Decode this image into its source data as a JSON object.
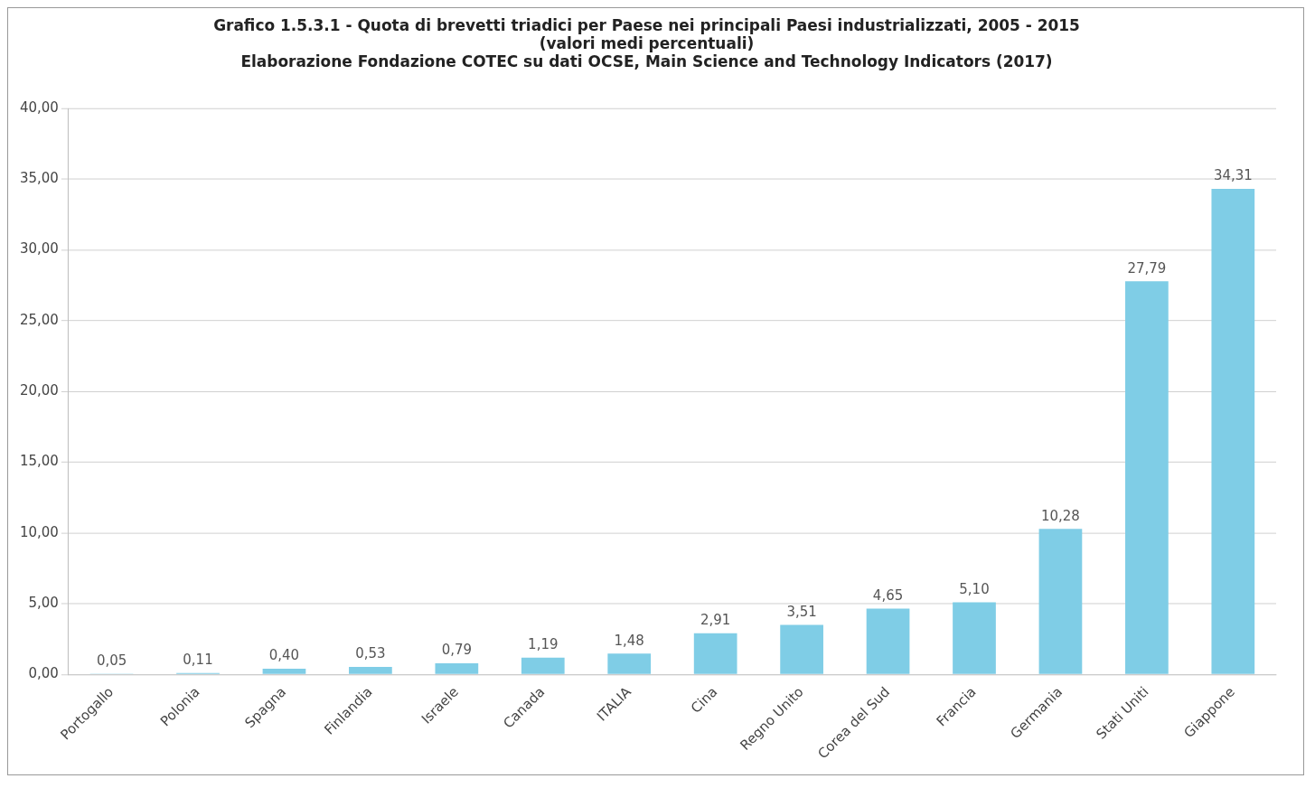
{
  "chart_data": {
    "type": "bar",
    "title": "Grafico 1.5.3.1 - Quota di brevetti triadici per Paese nei principali Paesi industrializzati, 2005 - 2015",
    "subtitle": "(valori medi percentuali)",
    "annotations": [
      "Elaborazione Fondazione COTEC su dati OCSE, Main Science and Technology Indicators (2017)"
    ],
    "categories": [
      "Portogallo",
      "Polonia",
      "Spagna",
      "Finlandia",
      "Israele",
      "Canada",
      "ITALIA",
      "Cina",
      "Regno Unito",
      "Corea del Sud",
      "Francia",
      "Germania",
      "Stati Uniti",
      "Giappone"
    ],
    "values": [
      0.05,
      0.11,
      0.4,
      0.53,
      0.79,
      1.19,
      1.48,
      2.91,
      3.51,
      4.65,
      5.1,
      10.28,
      27.79,
      34.31
    ],
    "value_labels": [
      "0,05",
      "0,11",
      "0,40",
      "0,53",
      "0,79",
      "1,19",
      "1,48",
      "2,91",
      "3,51",
      "4,65",
      "5,10",
      "10,28",
      "27,79",
      "34,31"
    ],
    "color": "#7fcde6",
    "ylim": [
      0,
      40
    ],
    "yticks": [
      {
        "value": 0,
        "label": "0,00"
      },
      {
        "value": 5,
        "label": "5,00"
      },
      {
        "value": 10,
        "label": "10,00"
      },
      {
        "value": 15,
        "label": "15,00"
      },
      {
        "value": 20,
        "label": "20,00"
      },
      {
        "value": 25,
        "label": "25,00"
      },
      {
        "value": 30,
        "label": "30,00"
      },
      {
        "value": 35,
        "label": "35,00"
      },
      {
        "value": 40,
        "label": "40,00"
      }
    ],
    "grid": "y",
    "legend": false
  }
}
